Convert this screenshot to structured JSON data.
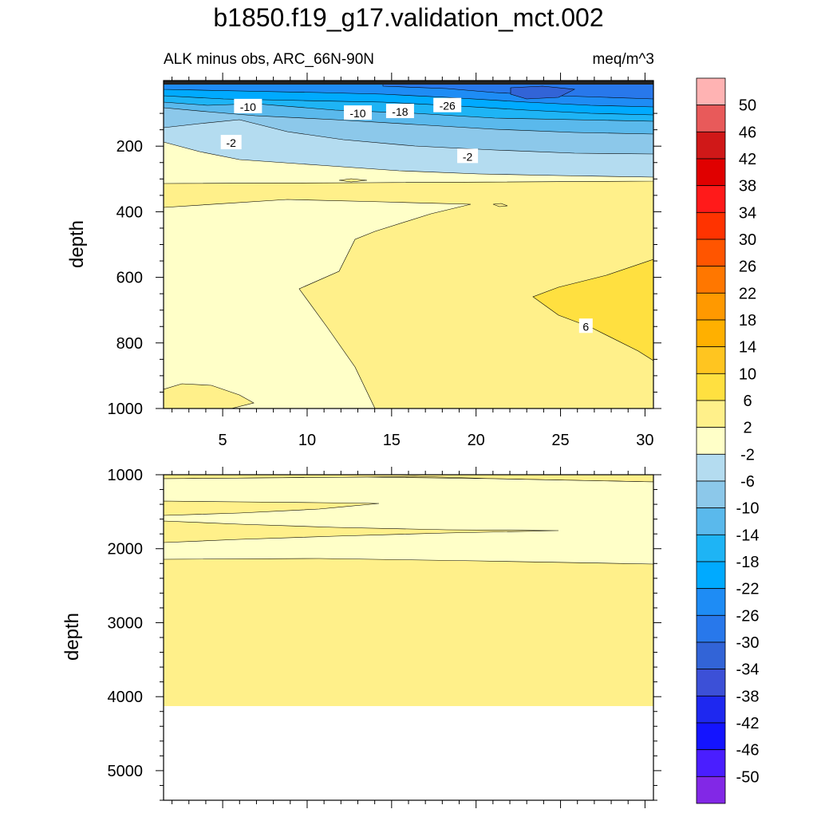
{
  "title": "b1850.f19_g17.validation_mct.002",
  "subtitle_left": "ALK minus obs, ARC_66N-90N",
  "subtitle_right": "meq/m^3",
  "chart_data": [
    {
      "type": "heatmap",
      "panel": "upper",
      "ylabel": "depth",
      "xlim": [
        1.5,
        30.5
      ],
      "ylim": [
        1000,
        0
      ],
      "x_ticks": [
        5,
        10,
        15,
        20,
        25,
        30
      ],
      "y_ticks": [
        200,
        400,
        600,
        800,
        1000
      ],
      "contour_labels": [
        {
          "text": "-10",
          "x": 6.5,
          "y": 80
        },
        {
          "text": "-10",
          "x": 13,
          "y": 100
        },
        {
          "text": "-18",
          "x": 15.5,
          "y": 95
        },
        {
          "text": "-26",
          "x": 18.3,
          "y": 77
        },
        {
          "text": "-2",
          "x": 5.5,
          "y": 190
        },
        {
          "text": "-2",
          "x": 19.5,
          "y": 232
        },
        {
          "text": "6",
          "x": 26.5,
          "y": 750
        }
      ]
    },
    {
      "type": "heatmap",
      "panel": "lower",
      "ylabel": "depth",
      "xlim": [
        1.5,
        30.5
      ],
      "ylim": [
        5400,
        1000
      ],
      "y_ticks": [
        1000,
        2000,
        3000,
        4000,
        5000
      ]
    }
  ],
  "colorbar": {
    "labels": [
      "50",
      "46",
      "42",
      "38",
      "34",
      "30",
      "26",
      "22",
      "18",
      "14",
      "10",
      "6",
      "2",
      "-2",
      "-6",
      "-10",
      "-14",
      "-18",
      "-22",
      "-26",
      "-30",
      "-34",
      "-38",
      "-42",
      "-46",
      "-50"
    ],
    "colors": [
      "#ffb3b3",
      "#e85a5a",
      "#d01818",
      "#e00000",
      "#ff1a1a",
      "#ff3300",
      "#ff5500",
      "#ff7700",
      "#ff9900",
      "#ffb000",
      "#ffc520",
      "#ffe040",
      "#fff08a",
      "#ffffc8",
      "#b4dcf0",
      "#8cc8ea",
      "#5ab9ec",
      "#1eb4f5",
      "#00aaff",
      "#1e8cf5",
      "#2878eb",
      "#3264d7",
      "#3c50d7",
      "#1e28f0",
      "#1414ff",
      "#4a1eff",
      "#8228e6"
    ]
  }
}
